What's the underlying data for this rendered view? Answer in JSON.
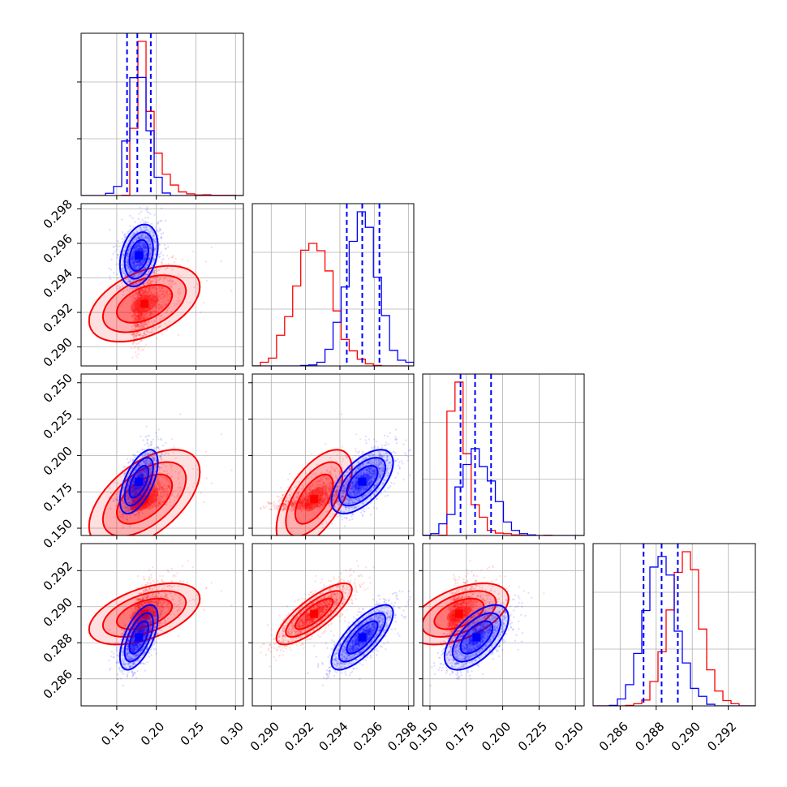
{
  "chart_data": {
    "type": "corner",
    "colors": {
      "red": "#ff0000",
      "blue": "#0000ff"
    },
    "grid": true,
    "params": [
      {
        "lim": [
          0.105,
          0.31
        ],
        "ticks": [
          0.15,
          0.2,
          0.25,
          0.3
        ],
        "tick_labels": [
          "0.15",
          "0.20",
          "0.25",
          "0.30"
        ]
      },
      {
        "lim": [
          0.2889,
          0.2983
        ],
        "ticks": [
          0.29,
          0.292,
          0.294,
          0.296,
          0.298
        ],
        "tick_labels": [
          "0.290",
          "0.292",
          "0.294",
          "0.296",
          "0.298"
        ]
      },
      {
        "lim": [
          0.145,
          0.256
        ],
        "ticks": [
          0.15,
          0.175,
          0.2,
          0.225,
          0.25
        ],
        "tick_labels": [
          "0.150",
          "0.175",
          "0.200",
          "0.225",
          "0.250"
        ]
      },
      {
        "lim": [
          0.2845,
          0.2935
        ],
        "ticks": [
          0.286,
          0.288,
          0.29,
          0.292
        ],
        "tick_labels": [
          "0.286",
          "0.288",
          "0.290",
          "0.292"
        ]
      }
    ],
    "series": [
      {
        "color": "#ff0000",
        "mean": [
          0.185,
          0.2925,
          0.17,
          0.2896
        ],
        "sd": [
          0.035,
          0.0011,
          0.017,
          0.00085
        ],
        "rho": {
          "0-1": 0.45,
          "0-2": 0.55,
          "0-3": 0.5,
          "1-2": 0.6,
          "1-3": 0.8,
          "2-3": 0.5
        }
      },
      {
        "color": "#0000ff",
        "mean": [
          0.178,
          0.2953,
          0.182,
          0.2883
        ],
        "sd": [
          0.012,
          0.0009,
          0.011,
          0.0009
        ],
        "rho": {
          "0-1": 0.3,
          "0-2": 0.6,
          "0-3": 0.6,
          "1-2": 0.6,
          "1-3": 0.75,
          "2-3": 0.6
        }
      }
    ],
    "quantiles_blue": [
      [
        0.163,
        0.176,
        0.193
      ],
      [
        0.2944,
        0.2953,
        0.2963
      ],
      [
        0.171,
        0.181,
        0.192
      ],
      [
        0.2873,
        0.2883,
        0.2892
      ]
    ]
  }
}
